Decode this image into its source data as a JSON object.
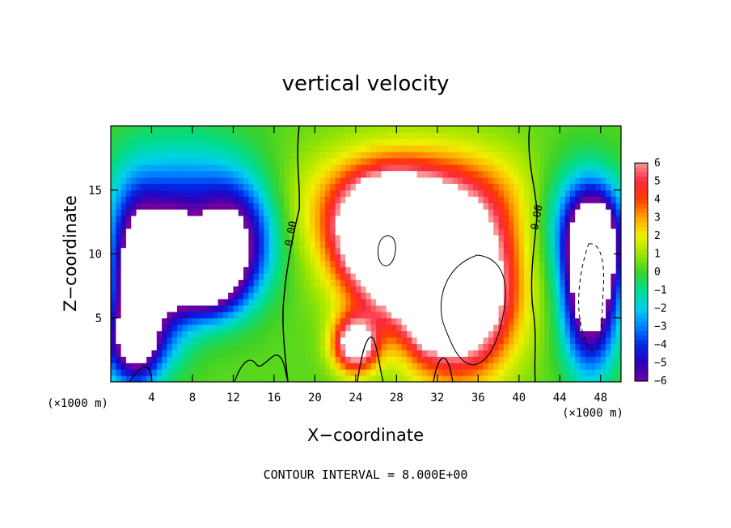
{
  "chart_data": {
    "type": "heatmap",
    "title": "vertical velocity",
    "xlabel": "X−coordinate",
    "ylabel": "Z−coordinate",
    "x_unit": "(×1000 m)",
    "z_unit": "(×1000 m)",
    "footer": "CONTOUR INTERVAL = 8.000E+00",
    "xlim": [
      0,
      50
    ],
    "ylim": [
      0,
      20
    ],
    "x_ticks": [
      4,
      8,
      12,
      16,
      20,
      24,
      28,
      32,
      36,
      40,
      44,
      48
    ],
    "y_ticks": [
      5,
      10,
      15
    ],
    "colorbar_levels": [
      6,
      5,
      4,
      3,
      2,
      1,
      0,
      -1,
      -2,
      -3,
      -4,
      -5,
      -6
    ],
    "colorbar_labels": [
      "6",
      "5",
      "4",
      "3",
      "2",
      "1",
      "0",
      "−1",
      "−2",
      "−3",
      "−4",
      "−5",
      "−6"
    ],
    "contour_labels": [
      "0.00",
      "0.00"
    ],
    "features": [
      {
        "x": 2.5,
        "z": 7,
        "value": -8,
        "sx": 1.6,
        "sz": 4.5
      },
      {
        "x": 5.5,
        "z": 9,
        "value": -7,
        "sx": 2.0,
        "sz": 3.0
      },
      {
        "x": 9.5,
        "z": 8,
        "value": -7,
        "sx": 2.2,
        "sz": 2.0
      },
      {
        "x": 12,
        "z": 11,
        "value": -6,
        "sx": 2.5,
        "sz": 3.0
      },
      {
        "x": 7,
        "z": 13,
        "value": -4,
        "sx": 5.0,
        "sz": 4.0
      },
      {
        "x": 2,
        "z": 3,
        "value": -4,
        "sx": 3.0,
        "sz": 2.0
      },
      {
        "x": 27,
        "z": 12,
        "value": 10,
        "sx": 3.0,
        "sz": 2.5
      },
      {
        "x": 34,
        "z": 7,
        "value": 12,
        "sx": 3.5,
        "sz": 4.0
      },
      {
        "x": 29,
        "z": 9,
        "value": 8,
        "sx": 4.0,
        "sz": 3.0
      },
      {
        "x": 30,
        "z": 14,
        "value": 5,
        "sx": 7.0,
        "sz": 3.0
      },
      {
        "x": 24,
        "z": 3,
        "value": 8,
        "sx": 1.5,
        "sz": 1.5
      },
      {
        "x": 31,
        "z": 5,
        "value": 2,
        "sx": 1.2,
        "sz": 2.0
      },
      {
        "x": 47,
        "z": 7,
        "value": -9,
        "sx": 1.8,
        "sz": 4.0
      },
      {
        "x": 47.5,
        "z": 11,
        "value": -6,
        "sx": 1.8,
        "sz": 2.5
      },
      {
        "x": 46,
        "z": 13,
        "value": -3,
        "sx": 3.0,
        "sz": 3.0
      }
    ]
  }
}
